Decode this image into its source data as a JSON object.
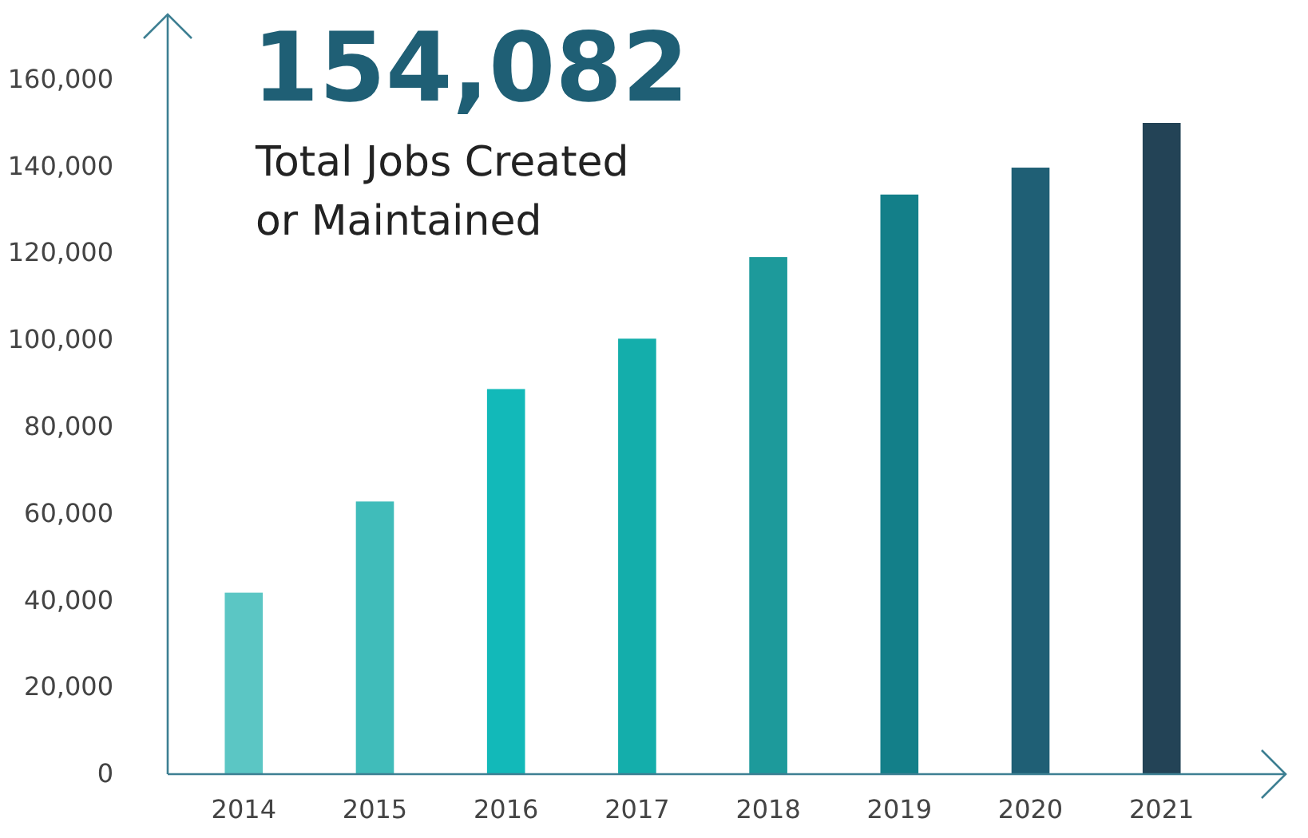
{
  "chart_data": {
    "type": "bar",
    "title": "154,082",
    "subtitle": "Total Jobs Created or Maintained",
    "categories": [
      "2014",
      "2015",
      "2016",
      "2017",
      "2018",
      "2019",
      "2020",
      "2021"
    ],
    "values": [
      41800,
      62800,
      88700,
      100300,
      119100,
      133500,
      139700,
      150000
    ],
    "colors": [
      "#5bc6c4",
      "#40bcba",
      "#12b9b9",
      "#14aeab",
      "#1d9a9b",
      "#137f89",
      "#1f5f75",
      "#234356"
    ],
    "ylim": [
      0,
      175000
    ],
    "yticks": [
      0,
      {
        "value": 20000,
        "label": "20,000"
      },
      {
        "value": 40000,
        "label": "40,000"
      },
      {
        "value": 60000,
        "label": "60,000"
      },
      {
        "value": 80000,
        "label": "80,000"
      },
      {
        "value": 100000,
        "label": "100,000"
      },
      {
        "value": 120000,
        "label": "120,000"
      },
      {
        "value": 140000,
        "label": "140,000"
      },
      {
        "value": 160000,
        "label": "160,000"
      }
    ],
    "grid": false
  }
}
